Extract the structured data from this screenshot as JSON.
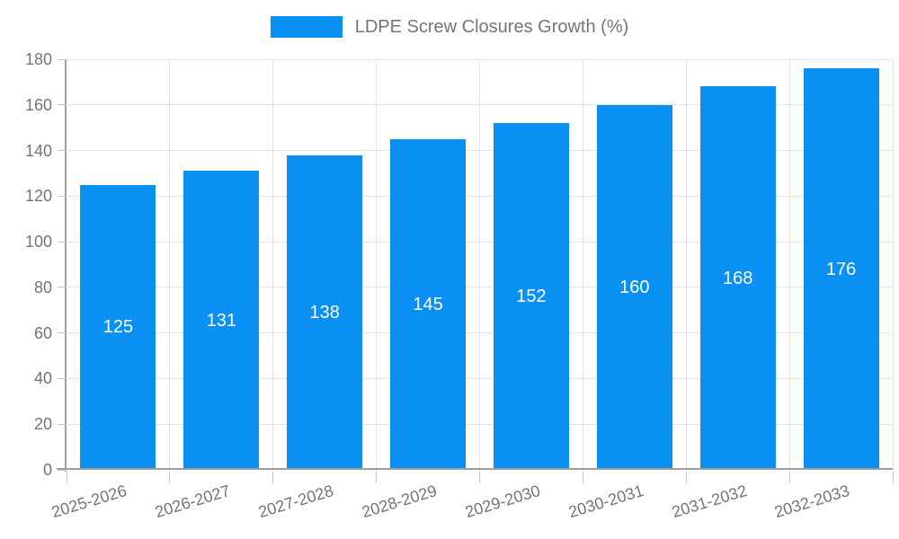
{
  "chart_data": {
    "type": "bar",
    "title": "",
    "xlabel": "",
    "ylabel": "",
    "legend": {
      "label": "LDPE Screw Closures Growth (%)",
      "position": "top-center"
    },
    "categories": [
      "2025-2026",
      "2026-2027",
      "2027-2028",
      "2028-2029",
      "2029-2030",
      "2030-2031",
      "2031-2032",
      "2032-2033"
    ],
    "series": [
      {
        "name": "LDPE Screw Closures Growth (%)",
        "values": [
          125,
          131,
          138,
          145,
          152,
          160,
          168,
          176
        ]
      }
    ],
    "value_labels_shown": true,
    "ylim": [
      0,
      180
    ],
    "yticks": [
      0,
      20,
      40,
      60,
      80,
      100,
      120,
      140,
      160,
      180
    ],
    "grid": true,
    "x_label_rotation_deg": -17,
    "colors": {
      "bar": "#0990F2",
      "bar_value_label": "#FFFFFF",
      "grid": "#E3E3E3",
      "axis": "#9E9E9E",
      "tick": "#C6C6C6",
      "text": "#757575",
      "background": "#FFFFFF"
    }
  }
}
